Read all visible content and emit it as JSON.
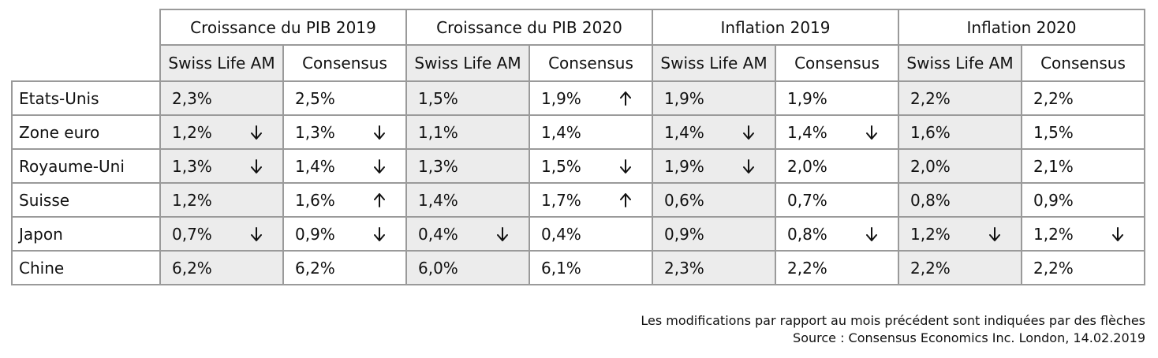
{
  "table": {
    "groups": [
      {
        "label": "Croissance du PIB 2019",
        "columns": [
          "Swiss Life AM",
          "Consensus"
        ]
      },
      {
        "label": "Croissance du PIB 2020",
        "columns": [
          "Swiss Life AM",
          "Consensus"
        ]
      },
      {
        "label": "Inflation 2019",
        "columns": [
          "Swiss Life AM",
          "Consensus"
        ]
      },
      {
        "label": "Inflation 2020",
        "columns": [
          "Swiss Life AM",
          "Consensus"
        ]
      }
    ],
    "rows": [
      {
        "country": "Etats-Unis",
        "cells": [
          {
            "value": "2,3%",
            "arrow": null
          },
          {
            "value": "2,5%",
            "arrow": null
          },
          {
            "value": "1,5%",
            "arrow": null
          },
          {
            "value": "1,9%",
            "arrow": "up"
          },
          {
            "value": "1,9%",
            "arrow": null
          },
          {
            "value": "1,9%",
            "arrow": null
          },
          {
            "value": "2,2%",
            "arrow": null
          },
          {
            "value": "2,2%",
            "arrow": null
          }
        ]
      },
      {
        "country": "Zone euro",
        "cells": [
          {
            "value": "1,2%",
            "arrow": "down"
          },
          {
            "value": "1,3%",
            "arrow": "down"
          },
          {
            "value": "1,1%",
            "arrow": null
          },
          {
            "value": "1,4%",
            "arrow": null
          },
          {
            "value": "1,4%",
            "arrow": "down"
          },
          {
            "value": "1,4%",
            "arrow": "down"
          },
          {
            "value": "1,6%",
            "arrow": null
          },
          {
            "value": "1,5%",
            "arrow": null
          }
        ]
      },
      {
        "country": "Royaume-Uni",
        "cells": [
          {
            "value": "1,3%",
            "arrow": "down"
          },
          {
            "value": "1,4%",
            "arrow": "down"
          },
          {
            "value": "1,3%",
            "arrow": null
          },
          {
            "value": "1,5%",
            "arrow": "down"
          },
          {
            "value": "1,9%",
            "arrow": "down"
          },
          {
            "value": "2,0%",
            "arrow": null
          },
          {
            "value": "2,0%",
            "arrow": null
          },
          {
            "value": "2,1%",
            "arrow": null
          }
        ]
      },
      {
        "country": "Suisse",
        "cells": [
          {
            "value": "1,2%",
            "arrow": null
          },
          {
            "value": "1,6%",
            "arrow": "up"
          },
          {
            "value": "1,4%",
            "arrow": null
          },
          {
            "value": "1,7%",
            "arrow": "up"
          },
          {
            "value": "0,6%",
            "arrow": null
          },
          {
            "value": "0,7%",
            "arrow": null
          },
          {
            "value": "0,8%",
            "arrow": null
          },
          {
            "value": "0,9%",
            "arrow": null
          }
        ]
      },
      {
        "country": "Japon",
        "cells": [
          {
            "value": "0,7%",
            "arrow": "down"
          },
          {
            "value": "0,9%",
            "arrow": "down"
          },
          {
            "value": "0,4%",
            "arrow": "down"
          },
          {
            "value": "0,4%",
            "arrow": null
          },
          {
            "value": "0,9%",
            "arrow": null
          },
          {
            "value": "0,8%",
            "arrow": "down"
          },
          {
            "value": "1,2%",
            "arrow": "down"
          },
          {
            "value": "1,2%",
            "arrow": "down"
          }
        ]
      },
      {
        "country": "Chine",
        "cells": [
          {
            "value": "6,2%",
            "arrow": null
          },
          {
            "value": "6,2%",
            "arrow": null
          },
          {
            "value": "6,0%",
            "arrow": null
          },
          {
            "value": "6,1%",
            "arrow": null
          },
          {
            "value": "2,3%",
            "arrow": null
          },
          {
            "value": "2,2%",
            "arrow": null
          },
          {
            "value": "2,2%",
            "arrow": null
          },
          {
            "value": "2,2%",
            "arrow": null
          }
        ]
      }
    ]
  },
  "notes": {
    "line1": "Les modifications par rapport au mois précédent sont indiquées par des flèches",
    "line2": "Source : Consensus Economics Inc. London, 14.02.2019"
  },
  "colors": {
    "shade": "#ececec",
    "border": "#9a9a9a"
  },
  "icons": {
    "up": "arrow-up-icon",
    "down": "arrow-down-icon"
  },
  "chart_data": {
    "type": "table",
    "columns": [
      "Croissance du PIB 2019 - Swiss Life AM",
      "Croissance du PIB 2019 - Consensus",
      "Croissance du PIB 2020 - Swiss Life AM",
      "Croissance du PIB 2020 - Consensus",
      "Inflation 2019 - Swiss Life AM",
      "Inflation 2019 - Consensus",
      "Inflation 2020 - Swiss Life AM",
      "Inflation 2020 - Consensus"
    ],
    "rows": [
      "Etats-Unis",
      "Zone euro",
      "Royaume-Uni",
      "Suisse",
      "Japon",
      "Chine"
    ],
    "values": [
      [
        2.3,
        2.5,
        1.5,
        1.9,
        1.9,
        1.9,
        2.2,
        2.2
      ],
      [
        1.2,
        1.3,
        1.1,
        1.4,
        1.4,
        1.4,
        1.6,
        1.5
      ],
      [
        1.3,
        1.4,
        1.3,
        1.5,
        1.9,
        2.0,
        2.0,
        2.1
      ],
      [
        1.2,
        1.6,
        1.4,
        1.7,
        0.6,
        0.7,
        0.8,
        0.9
      ],
      [
        0.7,
        0.9,
        0.4,
        0.4,
        0.9,
        0.8,
        1.2,
        1.2
      ],
      [
        6.2,
        6.2,
        6.0,
        6.1,
        2.3,
        2.2,
        2.2,
        2.2
      ]
    ],
    "changes": [
      [
        null,
        null,
        null,
        "up",
        null,
        null,
        null,
        null
      ],
      [
        "down",
        "down",
        null,
        null,
        "down",
        "down",
        null,
        null
      ],
      [
        "down",
        "down",
        null,
        "down",
        "down",
        null,
        null,
        null
      ],
      [
        null,
        "up",
        null,
        "up",
        null,
        null,
        null,
        null
      ],
      [
        "down",
        "down",
        "down",
        null,
        null,
        "down",
        "down",
        "down"
      ],
      [
        null,
        null,
        null,
        null,
        null,
        null,
        null,
        null
      ]
    ]
  }
}
